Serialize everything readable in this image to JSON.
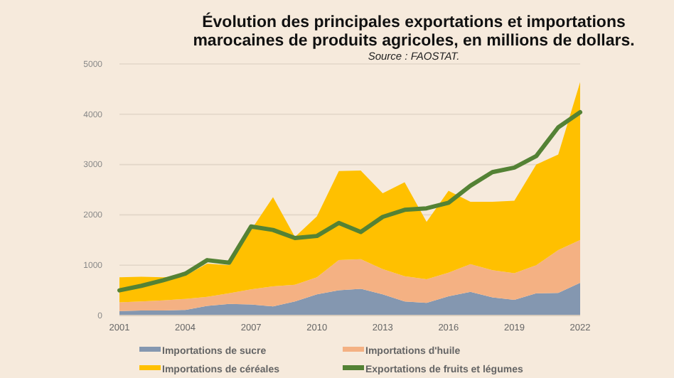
{
  "chart_data": {
    "type": "area",
    "title": "Évolution des principales exportations et importations marocaines de produits agricoles, en millions de dollars.",
    "annotations": [
      "Source : FAOSTAT."
    ],
    "x": [
      2001,
      2002,
      2003,
      2004,
      2005,
      2006,
      2007,
      2008,
      2009,
      2010,
      2011,
      2012,
      2013,
      2014,
      2015,
      2016,
      2017,
      2018,
      2019,
      2020,
      2021,
      2022
    ],
    "xlim": [
      2001,
      2022
    ],
    "xticks": [
      2001,
      2004,
      2007,
      2010,
      2013,
      2016,
      2019,
      2022
    ],
    "ylim": [
      0,
      5000
    ],
    "yticks": [
      0,
      1000,
      2000,
      3000,
      4000,
      5000
    ],
    "grid": "y",
    "stacked": true,
    "legend": "bottom",
    "series": [
      {
        "name": "Importations de sucre",
        "color": "#8497b0",
        "values": [
          90,
          100,
          100,
          110,
          190,
          230,
          220,
          180,
          280,
          420,
          500,
          530,
          420,
          280,
          250,
          380,
          470,
          360,
          310,
          440,
          450,
          650
        ]
      },
      {
        "name": "Importations d'huile",
        "color": "#f4b183",
        "values": [
          170,
          180,
          200,
          220,
          180,
          210,
          300,
          400,
          330,
          340,
          600,
          590,
          500,
          500,
          470,
          470,
          550,
          540,
          530,
          560,
          850,
          850
        ]
      },
      {
        "name": "Importations de céréales",
        "color": "#ffc000",
        "values": [
          500,
          490,
          460,
          460,
          660,
          560,
          1180,
          1770,
          950,
          1210,
          1770,
          1760,
          1510,
          1870,
          1140,
          1630,
          1240,
          1360,
          1440,
          2000,
          1900,
          3140
        ]
      },
      {
        "name": "Exportations de fruits et légumes",
        "type": "line",
        "color": "#548235",
        "values": [
          500,
          590,
          700,
          830,
          1100,
          1050,
          1770,
          1700,
          1540,
          1580,
          1840,
          1660,
          1960,
          2100,
          2130,
          2240,
          2580,
          2850,
          2940,
          3170,
          3740,
          4040
        ]
      }
    ]
  }
}
